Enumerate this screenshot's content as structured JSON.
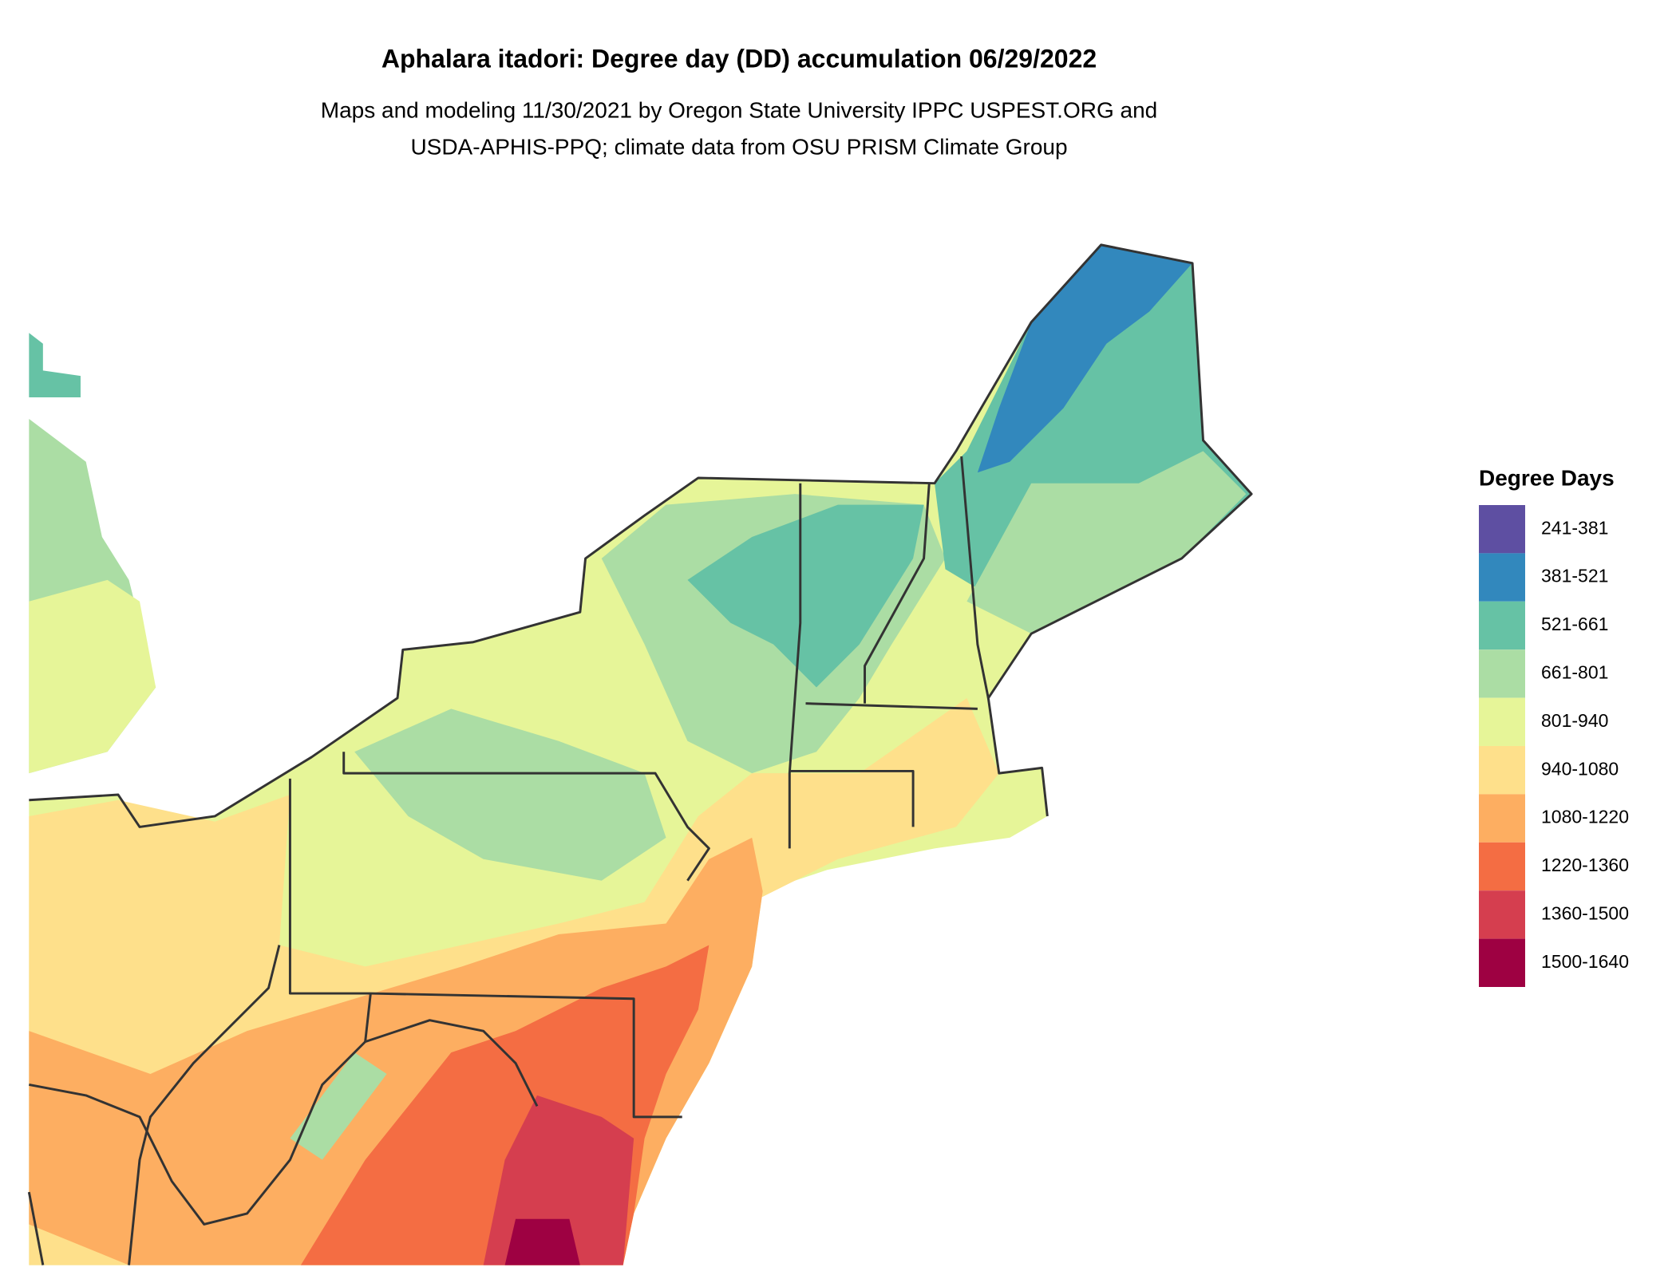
{
  "header": {
    "title": "Aphalara itadori: Degree day (DD) accumulation 06/29/2022",
    "subtitle": [
      "Maps and modeling 11/30/2021 by Oregon State University IPPC USPEST.ORG and",
      "USDA-APHIS-PPQ; climate data from OSU PRISM Climate Group"
    ]
  },
  "legend": {
    "title": "Degree Days",
    "items": [
      {
        "label": "241-381",
        "color": "#5e4fa2"
      },
      {
        "label": "381-521",
        "color": "#3288bd"
      },
      {
        "label": "521-661",
        "color": "#66c2a5"
      },
      {
        "label": "661-801",
        "color": "#abdda4"
      },
      {
        "label": "801-940",
        "color": "#e6f598"
      },
      {
        "label": "940-1080",
        "color": "#fee08b"
      },
      {
        "label": "1080-1220",
        "color": "#fdae61"
      },
      {
        "label": "1220-1360",
        "color": "#f46d43"
      },
      {
        "label": "1360-1500",
        "color": "#d53e4f"
      },
      {
        "label": "1500-1640",
        "color": "#9e0142"
      }
    ]
  }
}
